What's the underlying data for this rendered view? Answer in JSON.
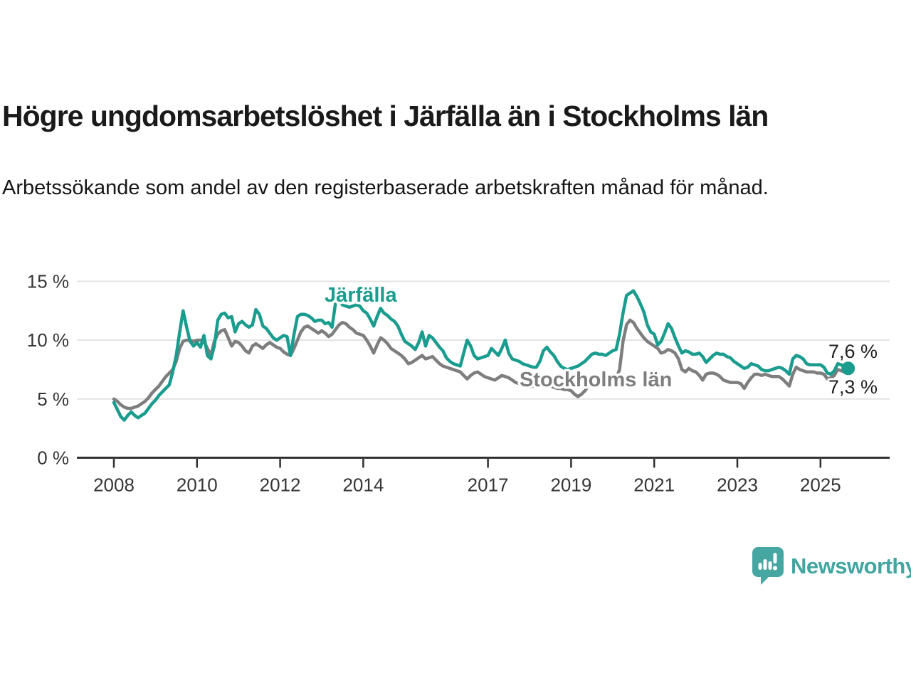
{
  "header": {
    "title": "Högre ungdomsarbetslöshet i Järfälla än i Stockholms län",
    "subtitle": "Arbetssökande som andel av den registerbaserade arbetskraften månad för månad."
  },
  "chart_data": {
    "type": "line",
    "title": "Högre ungdomsarbetslöshet i Järfälla än i Stockholms län",
    "subtitle": "Arbetssökande som andel av den registerbaserade arbetskraften månad för månad.",
    "x_start": "2008-01",
    "x_end": "2025-09",
    "x_frequency": "monthly",
    "grid": true,
    "legend_position": "inline-labels",
    "ylim": [
      0,
      16
    ],
    "y_ticks": [
      {
        "v": 0,
        "label": "0 %"
      },
      {
        "v": 5,
        "label": "5 %"
      },
      {
        "v": 10,
        "label": "10 %"
      },
      {
        "v": 15,
        "label": "15 %"
      }
    ],
    "x_ticks": [
      {
        "year": 2008,
        "label": "2008"
      },
      {
        "year": 2010,
        "label": "2010"
      },
      {
        "year": 2012,
        "label": "2012"
      },
      {
        "year": 2014,
        "label": "2014"
      },
      {
        "year": 2017,
        "label": "2017"
      },
      {
        "year": 2019,
        "label": "2019"
      },
      {
        "year": 2021,
        "label": "2021"
      },
      {
        "year": 2023,
        "label": "2023"
      },
      {
        "year": 2025,
        "label": "2025"
      }
    ],
    "series": [
      {
        "name": "Järfälla",
        "color": "#1a9c8e",
        "end_label": "7,6 %",
        "end_value": 7.6,
        "values": [
          4.7,
          4.1,
          3.5,
          3.2,
          3.6,
          3.9,
          3.6,
          3.4,
          3.6,
          3.8,
          4.2,
          4.6,
          4.9,
          5.3,
          5.6,
          5.9,
          6.2,
          7.3,
          8.7,
          10.7,
          12.5,
          11.1,
          9.9,
          9.5,
          9.8,
          9.4,
          10.4,
          8.7,
          8.4,
          9.5,
          11.7,
          12.2,
          12.3,
          11.9,
          12.0,
          10.7,
          11.4,
          11.6,
          11.3,
          11.1,
          11.3,
          12.6,
          12.2,
          11.2,
          11.0,
          10.6,
          10.2,
          10.0,
          10.2,
          10.4,
          10.3,
          8.7,
          10.5,
          12.0,
          12.2,
          12.2,
          12.1,
          11.9,
          11.6,
          11.7,
          11.7,
          11.4,
          11.5,
          11.1,
          13.2,
          13.3,
          13.0,
          12.9,
          12.8,
          12.9,
          13.0,
          12.9,
          12.5,
          12.3,
          11.8,
          11.2,
          12.0,
          12.7,
          12.3,
          12.1,
          11.8,
          11.6,
          11.2,
          10.5,
          9.9,
          9.7,
          9.5,
          9.2,
          9.8,
          10.7,
          9.5,
          10.4,
          10.2,
          9.8,
          9.4,
          9.1,
          8.5,
          8.2,
          8.0,
          7.9,
          7.8,
          8.9,
          10.0,
          9.5,
          8.7,
          8.4,
          8.5,
          8.6,
          8.7,
          9.3,
          9.0,
          8.7,
          9.3,
          10.0,
          8.9,
          8.4,
          8.3,
          8.2,
          8.0,
          7.9,
          7.8,
          7.7,
          7.7,
          8.2,
          9.1,
          9.4,
          9.0,
          8.7,
          8.2,
          7.8,
          7.6,
          7.5,
          7.6,
          7.7,
          7.8,
          8.0,
          8.2,
          8.5,
          8.8,
          8.9,
          8.8,
          8.8,
          8.7,
          8.9,
          9.1,
          9.2,
          10.5,
          12.3,
          13.8,
          14.0,
          14.2,
          13.7,
          13.1,
          12.4,
          11.3,
          10.7,
          10.5,
          9.6,
          9.9,
          10.6,
          11.4,
          11.0,
          10.2,
          9.5,
          8.9,
          9.1,
          9.0,
          8.8,
          8.8,
          8.9,
          8.6,
          8.1,
          8.4,
          8.7,
          8.9,
          8.8,
          8.8,
          8.6,
          8.5,
          8.2,
          8.0,
          7.8,
          7.6,
          7.7,
          8.0,
          7.9,
          7.8,
          7.5,
          7.4,
          7.4,
          7.5,
          7.6,
          7.7,
          7.6,
          7.4,
          7.1,
          8.4,
          8.7,
          8.6,
          8.4,
          8.0,
          7.9,
          7.9,
          7.9,
          7.9,
          7.7,
          7.2,
          7.1,
          7.4,
          8.0,
          7.9,
          7.7,
          7.6
        ]
      },
      {
        "name": "Stockholms län",
        "color": "#7e7e7e",
        "end_label": "7,3 %",
        "end_value": 7.3,
        "values": [
          5.0,
          4.8,
          4.5,
          4.3,
          4.2,
          4.2,
          4.3,
          4.4,
          4.6,
          4.8,
          5.1,
          5.5,
          5.8,
          6.1,
          6.5,
          6.9,
          7.2,
          7.5,
          8.2,
          9.3,
          9.9,
          10.0,
          10.0,
          9.9,
          10.0,
          10.0,
          9.9,
          9.3,
          8.7,
          9.9,
          10.5,
          10.8,
          10.9,
          10.2,
          9.5,
          9.9,
          9.8,
          9.5,
          9.1,
          8.9,
          9.5,
          9.7,
          9.5,
          9.3,
          9.6,
          9.8,
          9.6,
          9.4,
          9.3,
          9.0,
          8.8,
          8.7,
          9.3,
          10.0,
          10.7,
          11.1,
          11.2,
          11.0,
          10.8,
          10.6,
          10.8,
          10.6,
          10.3,
          10.5,
          10.9,
          11.3,
          11.5,
          11.4,
          11.1,
          10.9,
          10.6,
          10.5,
          10.4,
          10.0,
          9.5,
          8.9,
          9.6,
          10.2,
          10.0,
          9.7,
          9.3,
          9.1,
          8.9,
          8.7,
          8.4,
          8.0,
          8.1,
          8.3,
          8.5,
          8.7,
          8.4,
          8.5,
          8.6,
          8.3,
          8.0,
          7.8,
          7.7,
          7.6,
          7.5,
          7.4,
          7.3,
          7.0,
          6.7,
          7.0,
          7.2,
          7.3,
          7.1,
          6.9,
          6.8,
          6.7,
          6.6,
          6.8,
          7.0,
          6.9,
          6.8,
          6.6,
          6.4,
          6.3,
          6.2,
          6.1,
          6.0,
          6.1,
          6.2,
          6.2,
          6.3,
          6.2,
          6.1,
          6.0,
          5.9,
          5.9,
          5.8,
          5.8,
          5.7,
          5.4,
          5.2,
          5.4,
          5.7,
          6.1,
          6.2,
          6.3,
          6.3,
          6.4,
          6.4,
          6.5,
          6.6,
          6.7,
          7.5,
          9.9,
          11.3,
          11.7,
          11.5,
          11.0,
          10.6,
          10.2,
          9.9,
          9.7,
          9.5,
          9.3,
          8.9,
          9.0,
          9.2,
          9.1,
          8.9,
          8.4,
          7.5,
          7.3,
          7.6,
          7.4,
          7.3,
          7.0,
          6.6,
          7.1,
          7.2,
          7.2,
          7.1,
          6.9,
          6.6,
          6.5,
          6.4,
          6.4,
          6.4,
          6.3,
          5.9,
          6.4,
          6.8,
          7.1,
          7.1,
          7.0,
          7.1,
          7.0,
          6.9,
          6.9,
          6.9,
          6.7,
          6.4,
          6.1,
          7.1,
          7.7,
          7.5,
          7.4,
          7.3,
          7.3,
          7.3,
          7.2,
          7.2,
          7.1,
          6.7,
          6.8,
          7.0,
          7.5,
          7.4,
          7.3,
          7.3
        ]
      }
    ]
  },
  "footer": {
    "brand": "Newsworthy",
    "brand_color": "#46a6a2"
  }
}
